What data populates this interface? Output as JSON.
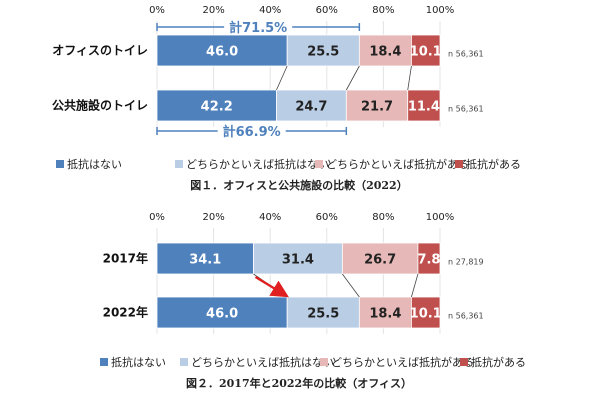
{
  "colors": {
    "s0": "#4f81bd",
    "s1": "#b9cde5",
    "s2": "#e6b9b8",
    "s3": "#c0504d",
    "total": "#4f81bd",
    "arrow": "#e02020"
  },
  "chart_data": [
    {
      "type": "bar",
      "stacked": true,
      "orientation": "horizontal",
      "title": "図１．オフィスと公共施設の比較（2022）",
      "xlim": [
        0,
        100
      ],
      "tick_labels": [
        "0%",
        "20%",
        "40%",
        "60%",
        "80%",
        "100%"
      ],
      "categories": [
        "オフィスのトイレ",
        "公共施設のトイレ"
      ],
      "value_labels": [
        [
          "46.0",
          "25.5",
          "18.4",
          "10.1"
        ],
        [
          "42.2",
          "24.7",
          "21.7",
          "11.4"
        ]
      ],
      "series": [
        {
          "name": "抵抗はない",
          "values": [
            46.0,
            42.2
          ]
        },
        {
          "name": "どちらかといえば抵抗はない",
          "values": [
            25.5,
            24.7
          ]
        },
        {
          "name": "どちらかといえば抵抗がある",
          "values": [
            18.4,
            21.7
          ]
        },
        {
          "name": "抵抗がある",
          "values": [
            10.1,
            11.4
          ]
        }
      ],
      "n_labels": [
        "n 56,361",
        "n 56,361"
      ],
      "totals": [
        {
          "label": "計71.5%",
          "category": 0,
          "value": 71.5
        },
        {
          "label": "計66.9%",
          "category": 1,
          "value": 66.9
        }
      ],
      "legend_position": "bottom"
    },
    {
      "type": "bar",
      "stacked": true,
      "orientation": "horizontal",
      "title": "図２．2017年と2022年の比較（オフィス）",
      "xlim": [
        0,
        100
      ],
      "tick_labels": [
        "0%",
        "20%",
        "40%",
        "60%",
        "80%",
        "100%"
      ],
      "categories": [
        "2017年",
        "2022年"
      ],
      "value_labels": [
        [
          "34.1",
          "31.4",
          "26.7",
          "7.8"
        ],
        [
          "46.0",
          "25.5",
          "18.4",
          "10.1"
        ]
      ],
      "series": [
        {
          "name": "抵抗はない",
          "values": [
            34.1,
            46.0
          ]
        },
        {
          "name": "どちらかといえば抵抗はない",
          "values": [
            31.4,
            25.5
          ]
        },
        {
          "name": "どちらかといえば抵抗がある",
          "values": [
            26.7,
            18.4
          ]
        },
        {
          "name": "抵抗がある",
          "values": [
            7.8,
            10.1
          ]
        }
      ],
      "n_labels": [
        "n 27,819",
        "n 56,361"
      ],
      "legend_position": "bottom"
    }
  ]
}
